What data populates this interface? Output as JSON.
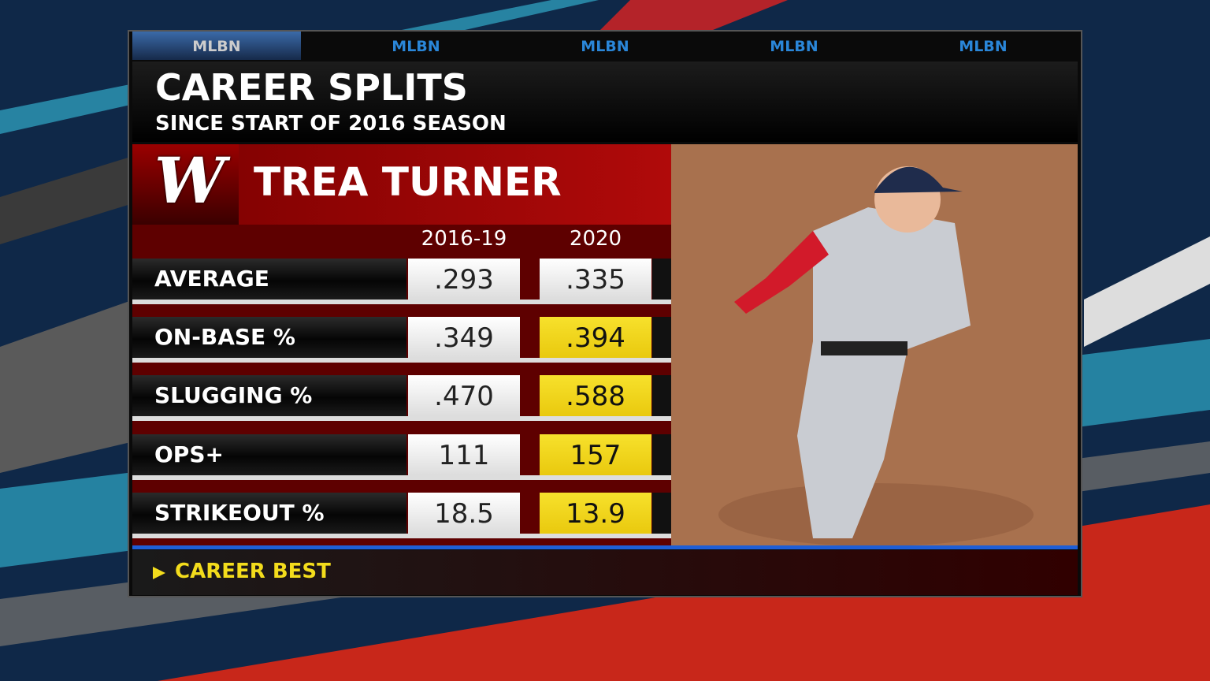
{
  "tabs": [
    "MLBN",
    "MLBN",
    "MLBN",
    "MLBN",
    "MLBN"
  ],
  "header": {
    "title": "CAREER SPLITS",
    "subtitle": "SINCE START OF 2016 SEASON"
  },
  "player": {
    "logo": "W",
    "name": "TREA TURNER"
  },
  "table": {
    "columns": [
      "2016-19",
      "2020"
    ],
    "rows": [
      {
        "label": "AVERAGE",
        "values": [
          ".293",
          ".335"
        ],
        "career_best": [
          false,
          false
        ]
      },
      {
        "label": "ON-BASE %",
        "values": [
          ".349",
          ".394"
        ],
        "career_best": [
          false,
          true
        ]
      },
      {
        "label": "SLUGGING %",
        "values": [
          ".470",
          ".588"
        ],
        "career_best": [
          false,
          true
        ]
      },
      {
        "label": "OPS+",
        "values": [
          "111",
          "157"
        ],
        "career_best": [
          false,
          true
        ]
      },
      {
        "label": "STRIKEOUT %",
        "values": [
          "18.5",
          "13.9"
        ],
        "career_best": [
          false,
          true
        ]
      }
    ]
  },
  "footer": {
    "legend": "CAREER BEST"
  }
}
